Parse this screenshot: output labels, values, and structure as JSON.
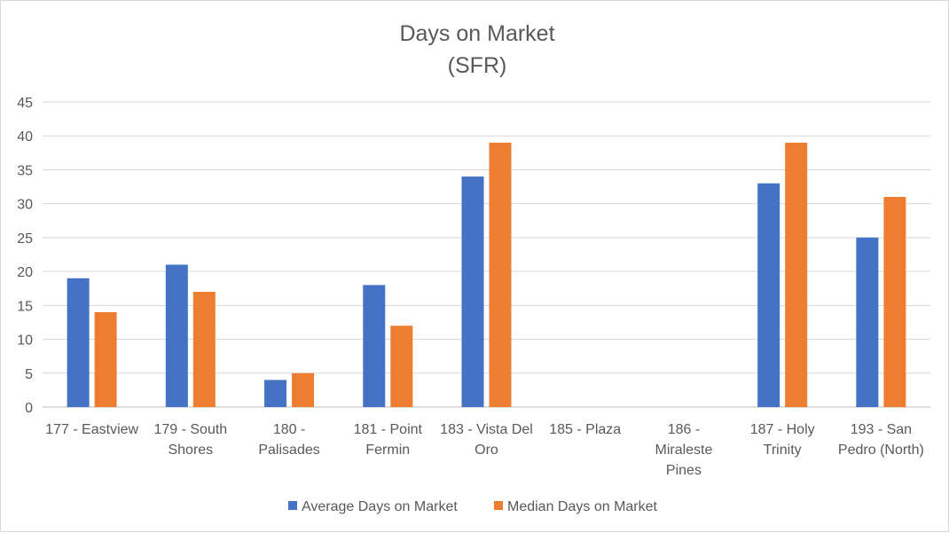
{
  "chart_data": {
    "type": "bar",
    "title": "Days on Market",
    "subtitle": "(SFR)",
    "categories": [
      [
        "177 - Eastview"
      ],
      [
        "179 - South",
        "Shores"
      ],
      [
        "180 -",
        "Palisades"
      ],
      [
        "181 - Point",
        "Fermin"
      ],
      [
        "183 - Vista Del",
        "Oro"
      ],
      [
        "185 - Plaza"
      ],
      [
        "186 -",
        "Miraleste",
        "Pines"
      ],
      [
        "187 - Holy",
        "Trinity"
      ],
      [
        "193 - San",
        "Pedro (North)"
      ]
    ],
    "series": [
      {
        "name": "Average Days on Market",
        "color": "#4472c4",
        "values": [
          19,
          21,
          4,
          18,
          34,
          null,
          null,
          33,
          25
        ]
      },
      {
        "name": "Median Days on Market",
        "color": "#ed7d31",
        "values": [
          14,
          17,
          5,
          12,
          39,
          null,
          null,
          39,
          31
        ]
      }
    ],
    "ylim": [
      0,
      45
    ],
    "yticks": [
      0,
      5,
      10,
      15,
      20,
      25,
      30,
      35,
      40,
      45
    ],
    "grid": true,
    "legend": "bottom"
  }
}
